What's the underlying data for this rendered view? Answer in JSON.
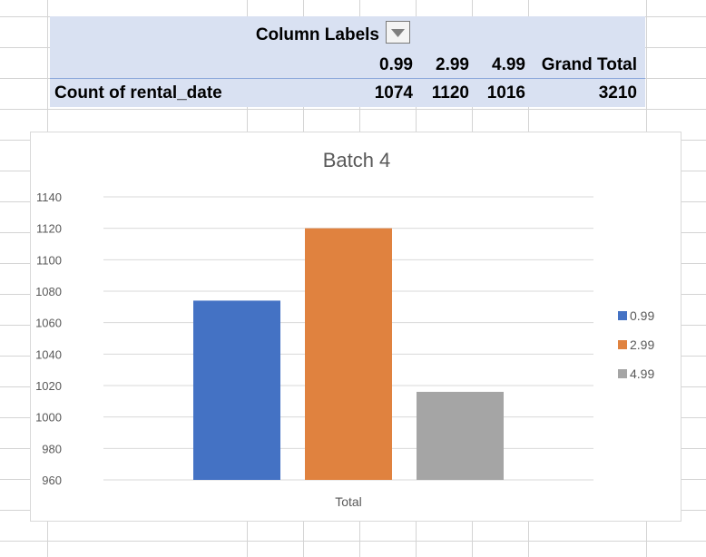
{
  "pivot": {
    "column_labels": "Column Labels",
    "columns": [
      "0.99",
      "2.99",
      "4.99",
      "Grand Total"
    ],
    "row_label": "Count of rental_date",
    "row_values": [
      "1074",
      "1120",
      "1016",
      "3210"
    ]
  },
  "chart_data": {
    "type": "bar",
    "title": "Batch 4",
    "categories": [
      "Total"
    ],
    "series": [
      {
        "name": "0.99",
        "values": [
          1074
        ],
        "color": "#4472c4"
      },
      {
        "name": "2.99",
        "values": [
          1120
        ],
        "color": "#e0823f"
      },
      {
        "name": "4.99",
        "values": [
          1016
        ],
        "color": "#a5a5a5"
      }
    ],
    "ylim": [
      960,
      1140
    ],
    "yticks": [
      960,
      980,
      1000,
      1020,
      1040,
      1060,
      1080,
      1100,
      1120,
      1140
    ],
    "grid": true,
    "legend": "right"
  }
}
